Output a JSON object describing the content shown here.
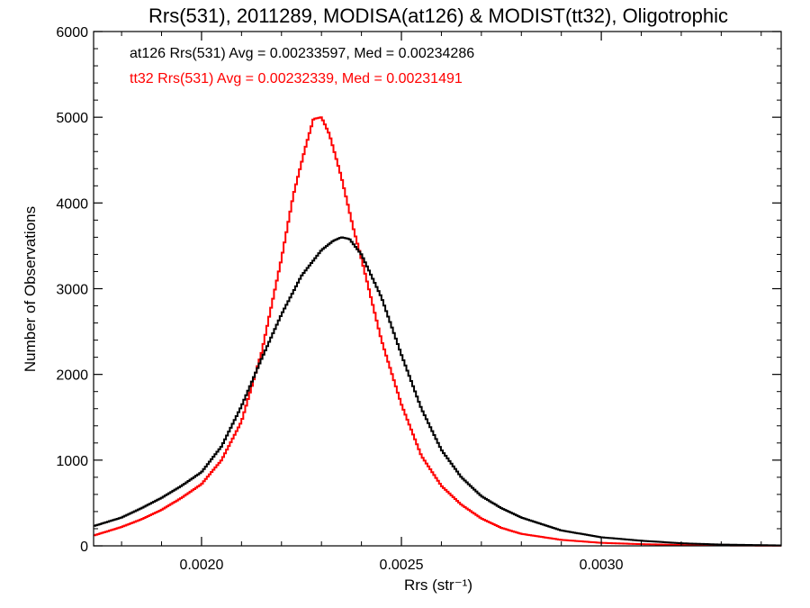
{
  "chart_data": {
    "type": "line",
    "title": "Rrs(531), 2011289, MODISA(at126) & MODIST(tt32), Oligotrophic",
    "xlabel": "Rrs (str⁻¹)",
    "ylabel": "Number of Observations",
    "xlim": [
      0.00173,
      0.00345
    ],
    "ylim": [
      0,
      6000
    ],
    "x_ticks": [
      0.002,
      0.0025,
      0.003
    ],
    "x_tick_labels": [
      "0.0020",
      "0.0025",
      "0.0030"
    ],
    "y_ticks": [
      0,
      1000,
      2000,
      3000,
      4000,
      5000,
      6000
    ],
    "y_tick_labels": [
      "0",
      "1000",
      "2000",
      "3000",
      "4000",
      "5000",
      "6000"
    ],
    "grid": false,
    "legend_position": "top-left",
    "series": [
      {
        "name": "at126",
        "color": "#000000",
        "stats_text": "at126 Rrs(531) Avg = 0.00233597, Med = 0.00234286",
        "x": [
          0.00173,
          0.0018,
          0.00185,
          0.0019,
          0.00195,
          0.002,
          0.00205,
          0.0021,
          0.00215,
          0.0022,
          0.00225,
          0.0023,
          0.00233,
          0.00235,
          0.00237,
          0.0024,
          0.00245,
          0.0025,
          0.00255,
          0.0026,
          0.00265,
          0.0027,
          0.00275,
          0.0028,
          0.0029,
          0.003,
          0.0031,
          0.0032,
          0.0033,
          0.00345
        ],
        "y": [
          230,
          330,
          440,
          560,
          700,
          860,
          1160,
          1630,
          2180,
          2700,
          3150,
          3450,
          3560,
          3600,
          3580,
          3400,
          2900,
          2230,
          1600,
          1120,
          800,
          580,
          440,
          330,
          180,
          100,
          60,
          30,
          15,
          5
        ]
      },
      {
        "name": "tt32",
        "color": "#ff0000",
        "stats_text": "tt32 Rrs(531) Avg = 0.00232339, Med = 0.00231491",
        "x": [
          0.00173,
          0.0018,
          0.00185,
          0.0019,
          0.00195,
          0.002,
          0.00205,
          0.0021,
          0.00215,
          0.0022,
          0.00223,
          0.00226,
          0.00228,
          0.0023,
          0.00232,
          0.00235,
          0.00238,
          0.0024,
          0.00245,
          0.0025,
          0.00255,
          0.0026,
          0.00265,
          0.0027,
          0.00275,
          0.0028,
          0.0029,
          0.003,
          0.0031,
          0.0032,
          0.0033,
          0.00345
        ],
        "y": [
          120,
          220,
          310,
          420,
          560,
          720,
          1000,
          1450,
          2250,
          3350,
          4100,
          4650,
          4980,
          5000,
          4800,
          4300,
          3700,
          3350,
          2400,
          1650,
          1050,
          700,
          480,
          320,
          210,
          140,
          70,
          35,
          20,
          10,
          5,
          2
        ]
      }
    ]
  }
}
